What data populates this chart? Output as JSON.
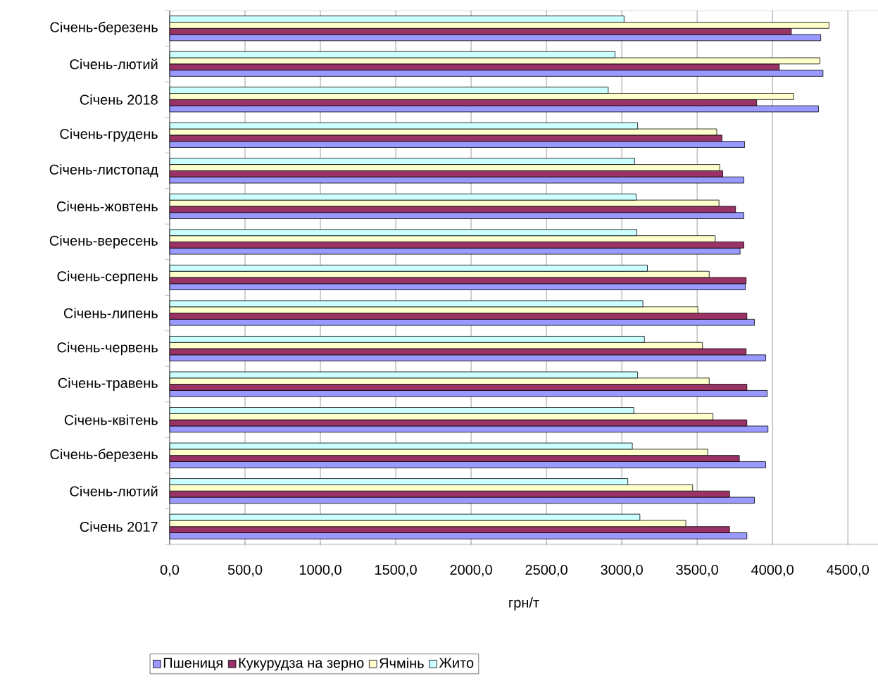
{
  "chart_data": {
    "type": "bar",
    "orientation": "horizontal",
    "xlabel": "грн/т",
    "categories": [
      "Січень-березень",
      "Січень-лютий",
      "Січень 2018",
      "Січень-грудень",
      "Січень-листопад",
      "Січень-жовтень",
      "Січень-вересень",
      "Січень-серпень",
      "Січень-липень",
      "Січень-червень",
      "Січень-травень",
      "Січень-квітень",
      "Січень-березень",
      "Січень-лютий",
      "Січень 2017"
    ],
    "series": [
      {
        "name": "Пшениця",
        "color": "#9999ff",
        "values": [
          4320,
          4335,
          4305,
          3815,
          3810,
          3810,
          3785,
          3820,
          3880,
          3955,
          3965,
          3970,
          3955,
          3880,
          3830
        ]
      },
      {
        "name": "Кукурудза на зерно",
        "color": "#993366",
        "values": [
          4125,
          4045,
          3895,
          3665,
          3670,
          3755,
          3810,
          3825,
          3830,
          3825,
          3830,
          3830,
          3780,
          3715,
          3715
        ]
      },
      {
        "name": "Ячмінь",
        "color": "#ffffcc",
        "values": [
          4375,
          4315,
          4140,
          3630,
          3650,
          3645,
          3620,
          3580,
          3505,
          3535,
          3580,
          3605,
          3570,
          3470,
          3425
        ]
      },
      {
        "name": "Жито",
        "color": "#ccffff",
        "values": [
          3015,
          2955,
          2910,
          3105,
          3085,
          3095,
          3100,
          3170,
          3140,
          3150,
          3105,
          3080,
          3070,
          3040,
          3120
        ]
      }
    ],
    "xlim": [
      0,
      4700
    ],
    "xticks": [
      {
        "value": 0,
        "label": "0,0"
      },
      {
        "value": 500,
        "label": "500,0"
      },
      {
        "value": 1000,
        "label": "1000,0"
      },
      {
        "value": 1500,
        "label": "1500,0"
      },
      {
        "value": 2000,
        "label": "2000,0"
      },
      {
        "value": 2500,
        "label": "2500,0"
      },
      {
        "value": 3000,
        "label": "3000,0"
      },
      {
        "value": 3500,
        "label": "3500,0"
      },
      {
        "value": 4000,
        "label": "4000,0"
      },
      {
        "value": 4500,
        "label": "4500,0"
      }
    ],
    "grid": "x",
    "legend": "bottom"
  }
}
